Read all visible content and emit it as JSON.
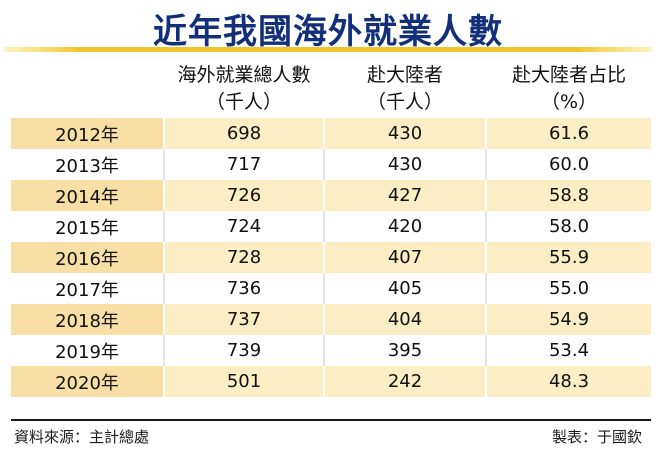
{
  "title": "近年我國海外就業人數",
  "headers": [
    {
      "line1": "",
      "line2": ""
    },
    {
      "line1": "海外就業總人數",
      "line2": "（千人）"
    },
    {
      "line1": "赴大陸者",
      "line2": "（千人）"
    },
    {
      "line1": "赴大陸者占比",
      "line2": "（%）"
    }
  ],
  "rows": [
    {
      "year": "2012年",
      "total": "698",
      "mainland": "430",
      "share": "61.6"
    },
    {
      "year": "2013年",
      "total": "717",
      "mainland": "430",
      "share": "60.0"
    },
    {
      "year": "2014年",
      "total": "726",
      "mainland": "427",
      "share": "58.8"
    },
    {
      "year": "2015年",
      "total": "724",
      "mainland": "420",
      "share": "58.0"
    },
    {
      "year": "2016年",
      "total": "728",
      "mainland": "407",
      "share": "55.9"
    },
    {
      "year": "2017年",
      "total": "736",
      "mainland": "405",
      "share": "55.0"
    },
    {
      "year": "2018年",
      "total": "737",
      "mainland": "404",
      "share": "54.9"
    },
    {
      "year": "2019年",
      "total": "739",
      "mainland": "395",
      "share": "53.4"
    },
    {
      "year": "2020年",
      "total": "501",
      "mainland": "242",
      "share": "48.3"
    }
  ],
  "footer": {
    "source": "資料來源：主計總處",
    "credit": "製表：于國欽"
  },
  "colors": {
    "title": "#12307a",
    "accent_bar": "#f2c52a",
    "stripe": "#fbeec4"
  }
}
